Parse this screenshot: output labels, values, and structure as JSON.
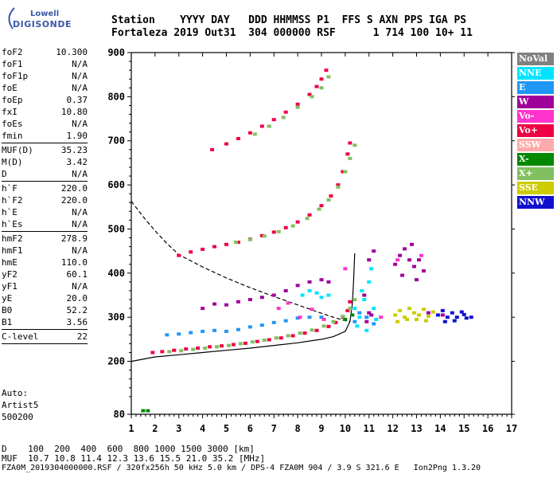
{
  "logo": {
    "line1": "Lowell",
    "line2": "DIGISONDE"
  },
  "header": {
    "labels": "Station    YYYY DAY   DDD HHMMSS P1  FFS S AXN PPS IGA PS",
    "values": "Fortaleza 2019 Out31  304 000000 RSF      1 714 100 10+ 11"
  },
  "params": {
    "group1": [
      {
        "k": "foF2",
        "v": "10.300"
      },
      {
        "k": "foF1",
        "v": "N/A"
      },
      {
        "k": "foF1p",
        "v": "N/A"
      },
      {
        "k": "foE",
        "v": "N/A"
      },
      {
        "k": "foEp",
        "v": "0.37"
      },
      {
        "k": "fxI",
        "v": "10.80"
      },
      {
        "k": "foEs",
        "v": "N/A"
      },
      {
        "k": "fmin",
        "v": "1.90"
      }
    ],
    "group2": [
      {
        "k": "MUF(D)",
        "v": "35.23"
      },
      {
        "k": "M(D)",
        "v": "3.42"
      },
      {
        "k": "D",
        "v": "N/A"
      }
    ],
    "group3": [
      {
        "k": "h`F",
        "v": "220.0"
      },
      {
        "k": "h`F2",
        "v": "220.0"
      },
      {
        "k": "h`E",
        "v": "N/A"
      },
      {
        "k": "h`Es",
        "v": "N/A"
      }
    ],
    "group4": [
      {
        "k": "hmF2",
        "v": "278.9"
      },
      {
        "k": "hmF1",
        "v": "N/A"
      },
      {
        "k": "hmE",
        "v": "110.0"
      },
      {
        "k": "yF2",
        "v": "60.1"
      },
      {
        "k": "yF1",
        "v": "N/A"
      },
      {
        "k": "yE",
        "v": "20.0"
      },
      {
        "k": "B0",
        "v": "52.2"
      },
      {
        "k": "B1",
        "v": "3.56"
      }
    ],
    "group5": [
      {
        "k": "C-level",
        "v": "22"
      }
    ]
  },
  "auto": {
    "line1": "Auto:",
    "line2": "Artist5",
    "line3": "500200"
  },
  "legend": [
    {
      "label": "NoVal",
      "color": "#808080"
    },
    {
      "label": "NNE",
      "color": "#00e5ff"
    },
    {
      "label": "E",
      "color": "#2196f3"
    },
    {
      "label": "W",
      "color": "#a0009a"
    },
    {
      "label": "Vo-",
      "color": "#ff33cc"
    },
    {
      "label": "Vo+",
      "color": "#ee0044"
    },
    {
      "label": "SSW",
      "color": "#ffaaaa"
    },
    {
      "label": "X-",
      "color": "#008800"
    },
    {
      "label": "X+",
      "color": "#80c060"
    },
    {
      "label": "SSE",
      "color": "#cccc00"
    },
    {
      "label": "NNW",
      "color": "#1010cc"
    }
  ],
  "footer": {
    "d_row": "D    100  200  400  600  800 1000 1500 3000 [km]",
    "muf_row": "MUF  10.7 10.8 11.4 12.3 13.6 15.5 21.0 35.2 [MHz]",
    "file_row": "FZA0M_2019304000000.RSF / 320fx256h 50 kHz 5.0 km / DPS-4 FZA0M 904 / 3.9 S 321.6 E   Ion2Png 1.3.20"
  },
  "chart_data": {
    "type": "scatter",
    "xlim": [
      1,
      17
    ],
    "ylim": [
      80,
      900
    ],
    "xticks": [
      1,
      2,
      3,
      4,
      5,
      6,
      7,
      8,
      9,
      10,
      11,
      12,
      13,
      14,
      15,
      16,
      17
    ],
    "yticks": [
      80,
      200,
      300,
      400,
      500,
      600,
      700,
      800,
      900
    ],
    "series": [
      {
        "name": "Vo+",
        "color": "#ee0044",
        "points": [
          [
            1.9,
            220
          ],
          [
            2.3,
            222
          ],
          [
            2.8,
            225
          ],
          [
            3.3,
            228
          ],
          [
            3.8,
            230
          ],
          [
            4.3,
            233
          ],
          [
            4.8,
            235
          ],
          [
            5.3,
            238
          ],
          [
            5.8,
            241
          ],
          [
            6.3,
            245
          ],
          [
            6.8,
            249
          ],
          [
            7.3,
            253
          ],
          [
            7.8,
            258
          ],
          [
            8.3,
            264
          ],
          [
            8.8,
            270
          ],
          [
            9.3,
            279
          ],
          [
            9.6,
            288
          ],
          [
            9.9,
            300
          ],
          [
            10.1,
            315
          ],
          [
            10.2,
            335
          ],
          [
            3.0,
            440
          ],
          [
            3.5,
            448
          ],
          [
            4.0,
            454
          ],
          [
            4.5,
            460
          ],
          [
            5.0,
            465
          ],
          [
            5.5,
            470
          ],
          [
            6.0,
            477
          ],
          [
            6.5,
            485
          ],
          [
            7.0,
            493
          ],
          [
            7.5,
            503
          ],
          [
            8.0,
            516
          ],
          [
            8.5,
            532
          ],
          [
            9.0,
            553
          ],
          [
            9.4,
            575
          ],
          [
            9.7,
            600
          ],
          [
            9.9,
            630
          ],
          [
            10.1,
            670
          ],
          [
            10.2,
            695
          ],
          [
            4.4,
            680
          ],
          [
            5.0,
            693
          ],
          [
            5.5,
            705
          ],
          [
            6.0,
            718
          ],
          [
            6.5,
            733
          ],
          [
            7.0,
            748
          ],
          [
            7.5,
            765
          ],
          [
            8.0,
            783
          ],
          [
            8.5,
            805
          ],
          [
            8.8,
            823
          ],
          [
            9.0,
            840
          ],
          [
            9.2,
            860
          ]
        ]
      },
      {
        "name": "X+",
        "color": "#80c060",
        "points": [
          [
            2.6,
            222
          ],
          [
            3.1,
            224
          ],
          [
            3.6,
            227
          ],
          [
            4.1,
            230
          ],
          [
            4.6,
            233
          ],
          [
            5.1,
            236
          ],
          [
            5.6,
            240
          ],
          [
            6.1,
            244
          ],
          [
            6.6,
            248
          ],
          [
            7.1,
            253
          ],
          [
            7.6,
            258
          ],
          [
            8.1,
            264
          ],
          [
            8.6,
            271
          ],
          [
            9.1,
            280
          ],
          [
            9.5,
            290
          ],
          [
            9.9,
            302
          ],
          [
            10.2,
            320
          ],
          [
            10.4,
            340
          ],
          [
            5.4,
            470
          ],
          [
            6.0,
            476
          ],
          [
            6.6,
            484
          ],
          [
            7.2,
            494
          ],
          [
            7.8,
            507
          ],
          [
            8.4,
            524
          ],
          [
            8.9,
            545
          ],
          [
            9.3,
            566
          ],
          [
            9.7,
            595
          ],
          [
            10.0,
            630
          ],
          [
            10.2,
            660
          ],
          [
            10.4,
            690
          ],
          [
            6.2,
            715
          ],
          [
            6.8,
            733
          ],
          [
            7.4,
            753
          ],
          [
            8.0,
            776
          ],
          [
            8.6,
            800
          ],
          [
            9.0,
            820
          ],
          [
            9.3,
            845
          ]
        ]
      },
      {
        "name": "W",
        "color": "#a0009a",
        "points": [
          [
            4.0,
            320
          ],
          [
            4.5,
            330
          ],
          [
            5.0,
            328
          ],
          [
            5.5,
            335
          ],
          [
            6.0,
            340
          ],
          [
            6.5,
            345
          ],
          [
            7.0,
            350
          ],
          [
            7.5,
            360
          ],
          [
            8.0,
            372
          ],
          [
            8.5,
            380
          ],
          [
            9.0,
            385
          ],
          [
            9.3,
            380
          ],
          [
            12.1,
            420
          ],
          [
            12.3,
            440
          ],
          [
            12.5,
            455
          ],
          [
            12.7,
            430
          ],
          [
            12.9,
            415
          ],
          [
            13.1,
            430
          ],
          [
            13.3,
            405
          ],
          [
            12.4,
            395
          ],
          [
            12.8,
            465
          ],
          [
            13.0,
            385
          ],
          [
            11.0,
            430
          ],
          [
            11.2,
            450
          ],
          [
            10.8,
            350
          ],
          [
            11.0,
            310
          ],
          [
            10.9,
            290
          ],
          [
            11.1,
            305
          ],
          [
            13.5,
            310
          ],
          [
            14.1,
            305
          ]
        ]
      },
      {
        "name": "NNE",
        "color": "#00e5ff",
        "points": [
          [
            8.2,
            350
          ],
          [
            8.5,
            360
          ],
          [
            8.8,
            355
          ],
          [
            9.0,
            345
          ],
          [
            9.3,
            350
          ],
          [
            10.4,
            320
          ],
          [
            10.6,
            300
          ],
          [
            10.8,
            340
          ],
          [
            11.0,
            380
          ],
          [
            11.2,
            320
          ],
          [
            10.5,
            280
          ],
          [
            10.7,
            360
          ],
          [
            11.3,
            295
          ],
          [
            11.1,
            410
          ],
          [
            10.9,
            270
          ]
        ]
      },
      {
        "name": "E",
        "color": "#2196f3",
        "points": [
          [
            2.5,
            260
          ],
          [
            3.0,
            262
          ],
          [
            3.5,
            265
          ],
          [
            4.0,
            268
          ],
          [
            4.5,
            270
          ],
          [
            5.0,
            268
          ],
          [
            5.5,
            272
          ],
          [
            6.0,
            278
          ],
          [
            6.5,
            282
          ],
          [
            7.0,
            288
          ],
          [
            7.5,
            292
          ],
          [
            8.0,
            298
          ],
          [
            8.5,
            300
          ],
          [
            9.0,
            300
          ],
          [
            10.4,
            290
          ],
          [
            10.6,
            310
          ],
          [
            10.9,
            300
          ],
          [
            11.2,
            285
          ]
        ]
      },
      {
        "name": "SSE",
        "color": "#cccc00",
        "points": [
          [
            12.1,
            305
          ],
          [
            12.3,
            315
          ],
          [
            12.5,
            300
          ],
          [
            12.7,
            320
          ],
          [
            12.9,
            310
          ],
          [
            13.1,
            305
          ],
          [
            13.3,
            318
          ],
          [
            13.5,
            302
          ],
          [
            13.7,
            312
          ],
          [
            12.2,
            290
          ],
          [
            12.6,
            295
          ],
          [
            13.0,
            295
          ],
          [
            13.4,
            292
          ]
        ]
      },
      {
        "name": "NNW",
        "color": "#1010cc",
        "points": [
          [
            13.9,
            305
          ],
          [
            14.1,
            315
          ],
          [
            14.3,
            300
          ],
          [
            14.5,
            310
          ],
          [
            14.7,
            300
          ],
          [
            14.9,
            312
          ],
          [
            15.1,
            298
          ],
          [
            14.2,
            290
          ],
          [
            14.6,
            292
          ],
          [
            15.0,
            306
          ],
          [
            15.3,
            300
          ]
        ]
      },
      {
        "name": "Vo-",
        "color": "#ff33cc",
        "points": [
          [
            7.2,
            320
          ],
          [
            7.6,
            332
          ],
          [
            8.1,
            300
          ],
          [
            8.6,
            318
          ],
          [
            9.1,
            295
          ],
          [
            10.0,
            410
          ],
          [
            11.5,
            300
          ],
          [
            12.2,
            430
          ],
          [
            13.2,
            440
          ]
        ]
      },
      {
        "name": "X-",
        "color": "#008800",
        "points": [
          [
            1.5,
            88
          ],
          [
            1.7,
            88
          ],
          [
            10.3,
            305
          ],
          [
            10.0,
            295
          ]
        ]
      }
    ],
    "lines": [
      {
        "name": "model_profile",
        "style": "solid",
        "color": "#000000",
        "points": [
          [
            1.0,
            200
          ],
          [
            2.0,
            210
          ],
          [
            3.0,
            215
          ],
          [
            4.0,
            220
          ],
          [
            5.0,
            225
          ],
          [
            6.0,
            230
          ],
          [
            7.0,
            236
          ],
          [
            8.0,
            242
          ],
          [
            9.0,
            250
          ],
          [
            9.5,
            256
          ],
          [
            10.0,
            268
          ],
          [
            10.2,
            290
          ],
          [
            10.3,
            330
          ],
          [
            10.35,
            380
          ],
          [
            10.4,
            445
          ]
        ]
      },
      {
        "name": "muf_curve",
        "style": "dashed",
        "color": "#000000",
        "points": [
          [
            1.0,
            563
          ],
          [
            1.5,
            528
          ],
          [
            2.0,
            496
          ],
          [
            2.5,
            467
          ],
          [
            3.0,
            442
          ],
          [
            4.0,
            414
          ],
          [
            5.0,
            389
          ],
          [
            6.0,
            367
          ],
          [
            7.0,
            347
          ],
          [
            8.0,
            328
          ],
          [
            9.0,
            309
          ],
          [
            9.5,
            300
          ],
          [
            10.0,
            292
          ],
          [
            10.2,
            290
          ]
        ]
      }
    ]
  }
}
